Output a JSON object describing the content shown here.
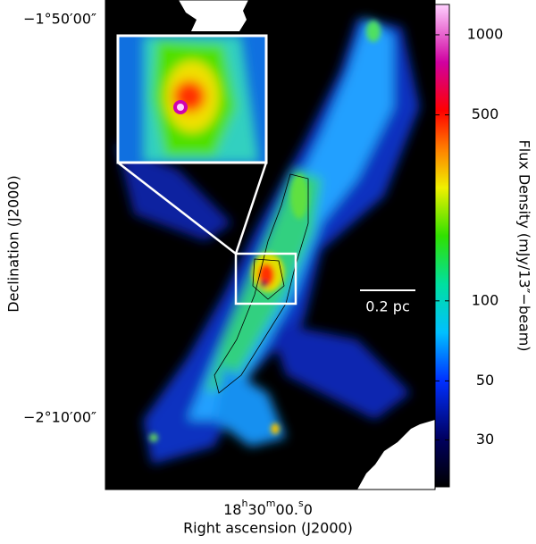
{
  "x_axis": {
    "label": "Right ascension (J2000)",
    "tick": [
      "18",
      "h",
      "30",
      "m",
      "00.",
      "s",
      "0"
    ]
  },
  "y_axis": {
    "label": "Declination (J2000)",
    "ticks": [
      "−1°50′00″",
      "−2°10′00″"
    ]
  },
  "colorbar": {
    "label": "Flux Density (mJy/13″−beam)",
    "scale": "log",
    "range": [
      20,
      1300
    ],
    "ticks": [
      30,
      50,
      100,
      500,
      1000
    ]
  },
  "scale_bar": {
    "label": "0.2 pc"
  }
}
